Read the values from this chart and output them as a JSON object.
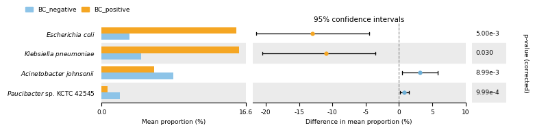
{
  "species": [
    "Escherichia coli",
    "Klebsiella pneumoniae",
    "Acinetobacter johnsonii",
    "Paucibacter sp. KCTC 42545"
  ],
  "bc_negative": [
    3.2,
    4.5,
    8.2,
    2.1
  ],
  "bc_positive": [
    15.5,
    15.8,
    6.0,
    0.7
  ],
  "ci_centers": [
    -13.0,
    -11.0,
    3.2,
    0.8
  ],
  "ci_lower": [
    -21.5,
    -20.5,
    0.5,
    0.2
  ],
  "ci_upper": [
    -4.5,
    -3.5,
    5.8,
    1.5
  ],
  "pvalues": [
    "5.00e-3",
    "0.030",
    "8.99e-3",
    "9.99e-4"
  ],
  "dot_colors": [
    "#F5A623",
    "#F5A623",
    "#6BAED6",
    "#6BAED6"
  ],
  "bar_neg_color": "#8DC4E8",
  "bar_pos_color": "#F5A623",
  "bar_xlim": [
    0,
    16.6
  ],
  "ci_xlim": [
    -22,
    10
  ],
  "bar_xticks": [
    0.0,
    16.6
  ],
  "ci_xticks": [
    -20,
    -15,
    -10,
    -5,
    0,
    5,
    10
  ],
  "bar_xlabel": "Mean proportion (%)",
  "ci_xlabel": "Difference in mean proportion (%)",
  "ci_title": "95% confidence intervals",
  "pvalue_ylabel": "p-value (corrected)",
  "legend_labels": [
    "BC_negative",
    "BC_positive"
  ],
  "row_shading_rows": [
    1,
    3
  ],
  "shade_color": "#EBEBEB",
  "bar_height": 0.32,
  "title_fontsize": 7.5,
  "label_fontsize": 6.5,
  "tick_fontsize": 6.5,
  "pvalue_fontsize": 6.5
}
